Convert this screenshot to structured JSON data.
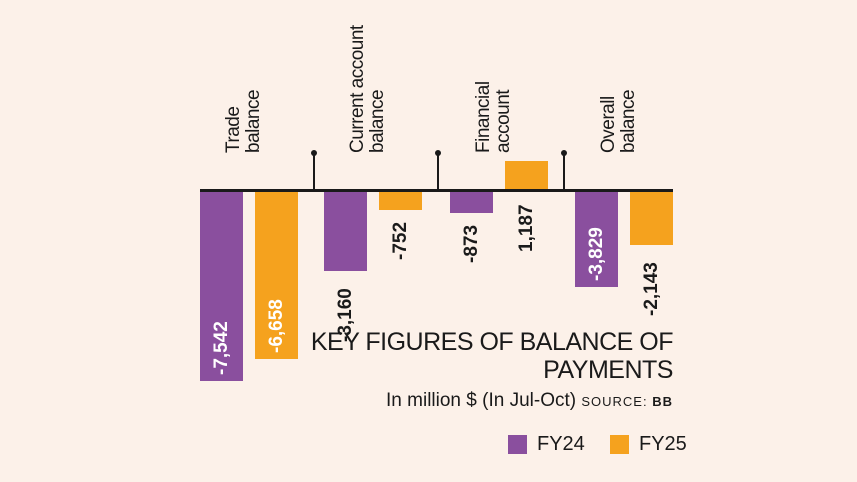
{
  "chart_data": {
    "type": "bar",
    "title": "KEY FIGURES OF BALANCE OF PAYMENTS",
    "subtitle": "In million $ (In Jul-Oct)",
    "source_label": "SOURCE:",
    "source_value": "BB",
    "categories": [
      "Trade balance",
      "Current account balance",
      "Financial account",
      "Overall balance"
    ],
    "category_lines": [
      [
        "Trade",
        "balance"
      ],
      [
        "Current account",
        "balance"
      ],
      [
        "Financial",
        "account"
      ],
      [
        "Overall",
        "balance"
      ]
    ],
    "series": [
      {
        "name": "FY24",
        "color": "#8a4f9e",
        "values": [
          -7542,
          -3160,
          -873,
          -3829
        ],
        "labels": [
          "-7,542",
          "-3,160",
          "-873",
          "-3,829"
        ]
      },
      {
        "name": "FY25",
        "color": "#f5a21e",
        "values": [
          -6658,
          -752,
          1187,
          -2143
        ],
        "labels": [
          "-6,658",
          "-752",
          "1,187",
          "-2,143"
        ]
      }
    ],
    "xlabel": "",
    "ylabel": "In million $",
    "grid": false,
    "legend_position": "bottom-right"
  },
  "legend": [
    {
      "label": "FY24",
      "color": "#8a4f9e"
    },
    {
      "label": "FY25",
      "color": "#f5a21e"
    }
  ]
}
